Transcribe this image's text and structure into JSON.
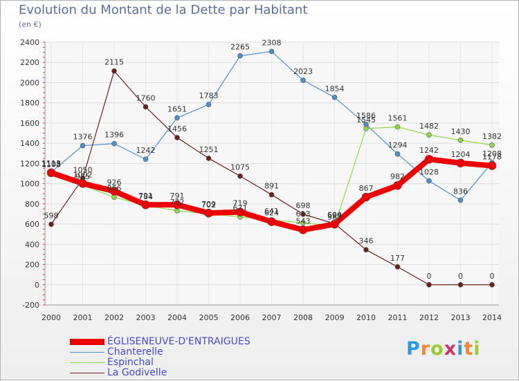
{
  "title": "Evolution du Montant de la Dette par Habitant",
  "subtitle": "(en €)",
  "logo": "Proxiti",
  "colors": {
    "EGLISENEUVE": "#ee0000",
    "Chanterelle": "#4f8fc9",
    "Espinchal": "#8ed64a",
    "LaGodivelle": "#6b2020"
  },
  "chart_data": {
    "type": "line",
    "title": "Evolution du Montant de la Dette par Habitant",
    "ylabel": "(en €)",
    "xlabel": "",
    "x": [
      "2000",
      "2001",
      "2002",
      "2003",
      "2004",
      "2005",
      "2006",
      "2007",
      "2008",
      "2009",
      "2010",
      "2011",
      "2012",
      "2013",
      "2014"
    ],
    "ylim": [
      -200,
      2400
    ],
    "yticks": [
      "-200",
      "0",
      "200",
      "400",
      "600",
      "800",
      "1000",
      "1200",
      "1400",
      "1600",
      "1800",
      "2000",
      "2200",
      "2400"
    ],
    "grid": true,
    "legend": "bottom-left",
    "series": [
      {
        "name": "Chanterelle",
        "values": [
          1113,
          1376,
          1396,
          1242,
          1651,
          1783,
          2265,
          2308,
          2023,
          1854,
          1586,
          1294,
          1028,
          836,
          1208
        ]
      },
      {
        "name": "Espinchal",
        "values": [
          1103,
          985,
          866,
          784,
          732,
          702,
          671,
          641,
          613,
          583,
          1545,
          1561,
          1482,
          1430,
          1382
        ]
      },
      {
        "name": "La Godivelle",
        "values": [
          598,
          1050,
          2115,
          1760,
          1456,
          1251,
          1075,
          891,
          698,
          604,
          346,
          177,
          0,
          0,
          0
        ]
      },
      {
        "name": "ÉGLISENEUVE-D'ENTRAIGUES",
        "values": [
          1108,
          1002,
          926,
          791,
          791,
          709,
          719,
          624,
          543,
          599,
          867,
          982,
          1242,
          1204,
          1178
        ]
      }
    ]
  },
  "legend_items": [
    "ÉGLISENEUVE-D'ENTRAIGUES",
    "Chanterelle",
    "Espinchal",
    "La Godivelle"
  ]
}
